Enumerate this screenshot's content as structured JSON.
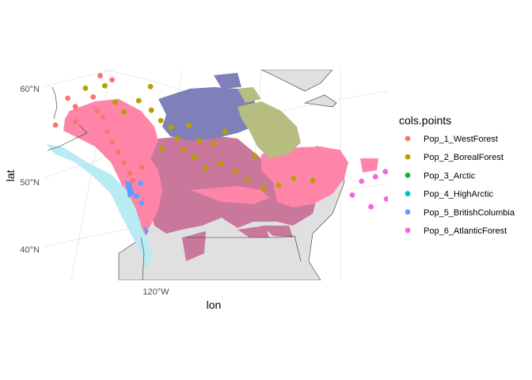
{
  "chart_data": {
    "type": "map",
    "xlabel": "lon",
    "ylabel": "lat",
    "y_ticks": [
      "60°N",
      "50°N",
      "40°N"
    ],
    "x_ticks": [
      "120°W"
    ],
    "legend": {
      "title": "cols.points",
      "placement": "right",
      "entries": [
        {
          "name": "Pop_1_WestForest",
          "color": "#F8766D"
        },
        {
          "name": "Pop_2_BorealForest",
          "color": "#B79F00"
        },
        {
          "name": "Pop_3_Arctic",
          "color": "#00BA38"
        },
        {
          "name": "Pop_4_HighArctic",
          "color": "#00BFC4"
        },
        {
          "name": "Pop_5_BritishColumbia",
          "color": "#619CFF"
        },
        {
          "name": "Pop_6_AtlanticForest",
          "color": "#F564E3"
        }
      ]
    },
    "background_colors": {
      "land": "#e0e0e0",
      "graticule": "#ebebeb",
      "pop1_range": "#ff85a8",
      "pop2_range": "#c9779b",
      "pop3_range": "#7f7fba",
      "pop4_range": "#b7bd80",
      "pop5_range": "#b8ecf2",
      "pop6_range": "#ff8ab3"
    },
    "points": [
      {
        "pop": 1,
        "lon": -150.0,
        "lat": 64.5
      },
      {
        "pop": 1,
        "lon": -147.0,
        "lat": 63.0
      },
      {
        "pop": 1,
        "lon": -152.0,
        "lat": 61.5
      },
      {
        "pop": 1,
        "lon": -146.0,
        "lat": 61.0
      },
      {
        "pop": 1,
        "lon": -142.0,
        "lat": 63.5
      },
      {
        "pop": 1,
        "lon": -140.0,
        "lat": 61.5
      },
      {
        "pop": 1,
        "lon": -138.0,
        "lat": 60.5
      },
      {
        "pop": 1,
        "lon": -136.0,
        "lat": 58.5
      },
      {
        "pop": 1,
        "lon": -134.0,
        "lat": 57.0
      },
      {
        "pop": 1,
        "lon": -132.0,
        "lat": 55.5
      },
      {
        "pop": 1,
        "lon": -130.0,
        "lat": 54.0
      },
      {
        "pop": 1,
        "lon": -128.0,
        "lat": 52.5
      },
      {
        "pop": 1,
        "lon": -127.0,
        "lat": 51.5
      },
      {
        "pop": 1,
        "lon": -125.0,
        "lat": 53.0
      },
      {
        "pop": 1,
        "lon": -141.0,
        "lat": 66.0
      },
      {
        "pop": 1,
        "lon": -137.0,
        "lat": 65.0
      },
      {
        "pop": 2,
        "lon": -145.0,
        "lat": 65.0
      },
      {
        "pop": 2,
        "lon": -139.0,
        "lat": 64.5
      },
      {
        "pop": 2,
        "lon": -135.0,
        "lat": 62.0
      },
      {
        "pop": 2,
        "lon": -132.0,
        "lat": 60.5
      },
      {
        "pop": 2,
        "lon": -128.0,
        "lat": 61.5
      },
      {
        "pop": 2,
        "lon": -124.0,
        "lat": 60.0
      },
      {
        "pop": 2,
        "lon": -121.0,
        "lat": 58.5
      },
      {
        "pop": 2,
        "lon": -118.0,
        "lat": 57.5
      },
      {
        "pop": 2,
        "lon": -116.0,
        "lat": 56.0
      },
      {
        "pop": 2,
        "lon": -114.0,
        "lat": 54.5
      },
      {
        "pop": 2,
        "lon": -111.0,
        "lat": 53.5
      },
      {
        "pop": 2,
        "lon": -108.0,
        "lat": 52.0
      },
      {
        "pop": 2,
        "lon": -104.0,
        "lat": 52.5
      },
      {
        "pop": 2,
        "lon": -100.0,
        "lat": 51.5
      },
      {
        "pop": 2,
        "lon": -97.0,
        "lat": 50.5
      },
      {
        "pop": 2,
        "lon": -93.0,
        "lat": 49.5
      },
      {
        "pop": 2,
        "lon": -89.0,
        "lat": 50.0
      },
      {
        "pop": 2,
        "lon": -85.0,
        "lat": 51.0
      },
      {
        "pop": 2,
        "lon": -110.0,
        "lat": 55.5
      },
      {
        "pop": 2,
        "lon": -106.0,
        "lat": 55.0
      },
      {
        "pop": 2,
        "lon": -120.0,
        "lat": 55.0
      },
      {
        "pop": 2,
        "lon": -113.0,
        "lat": 57.5
      },
      {
        "pop": 2,
        "lon": -103.0,
        "lat": 56.5
      },
      {
        "pop": 2,
        "lon": -95.0,
        "lat": 53.5
      },
      {
        "pop": 2,
        "lon": -80.0,
        "lat": 51.0
      },
      {
        "pop": 2,
        "lon": -125.0,
        "lat": 63.0
      },
      {
        "pop": 3,
        "lon": -128.0,
        "lat": 69.0
      },
      {
        "pop": 3,
        "lon": -123.0,
        "lat": 70.0
      },
      {
        "pop": 3,
        "lon": -118.0,
        "lat": 69.5
      },
      {
        "pop": 3,
        "lon": -112.0,
        "lat": 69.0
      },
      {
        "pop": 3,
        "lon": -106.0,
        "lat": 69.5
      },
      {
        "pop": 3,
        "lon": -102.0,
        "lat": 70.5
      },
      {
        "pop": 3,
        "lon": -97.0,
        "lat": 71.5
      },
      {
        "pop": 3,
        "lon": -94.0,
        "lat": 73.0
      },
      {
        "pop": 3,
        "lon": -120.0,
        "lat": 67.5
      },
      {
        "pop": 3,
        "lon": -114.0,
        "lat": 66.5
      },
      {
        "pop": 3,
        "lon": -108.0,
        "lat": 66.5
      },
      {
        "pop": 3,
        "lon": -100.0,
        "lat": 67.0
      },
      {
        "pop": 3,
        "lon": -95.0,
        "lat": 68.0
      },
      {
        "pop": 3,
        "lon": -90.0,
        "lat": 69.0
      },
      {
        "pop": 3,
        "lon": -131.0,
        "lat": 66.5
      },
      {
        "pop": 3,
        "lon": -86.0,
        "lat": 70.5
      },
      {
        "pop": 4,
        "lon": -88.0,
        "lat": 72.5
      },
      {
        "pop": 4,
        "lon": -84.0,
        "lat": 71.0
      },
      {
        "pop": 4,
        "lon": -80.0,
        "lat": 70.0
      },
      {
        "pop": 4,
        "lon": -76.0,
        "lat": 69.0
      },
      {
        "pop": 4,
        "lon": -72.0,
        "lat": 67.0
      },
      {
        "pop": 4,
        "lon": -82.0,
        "lat": 73.0
      },
      {
        "pop": 5,
        "lon": -125.5,
        "lat": 49.5
      },
      {
        "pop": 5,
        "lon": -124.0,
        "lat": 48.5
      },
      {
        "pop": 5,
        "lon": -124.8,
        "lat": 51.0
      },
      {
        "pop": 6,
        "lon": -67.0,
        "lat": 52.0
      },
      {
        "pop": 6,
        "lon": -63.0,
        "lat": 53.0
      },
      {
        "pop": 6,
        "lon": -60.0,
        "lat": 54.0
      },
      {
        "pop": 6,
        "lon": -58.0,
        "lat": 53.5
      },
      {
        "pop": 6,
        "lon": -61.0,
        "lat": 50.5
      },
      {
        "pop": 6,
        "lon": -54.0,
        "lat": 49.5
      },
      {
        "pop": 6,
        "lon": -70.0,
        "lat": 50.0
      },
      {
        "pop": 6,
        "lon": -65.5,
        "lat": 49.0
      },
      {
        "pop": 6,
        "lon": -56.0,
        "lat": 51.5
      }
    ]
  }
}
